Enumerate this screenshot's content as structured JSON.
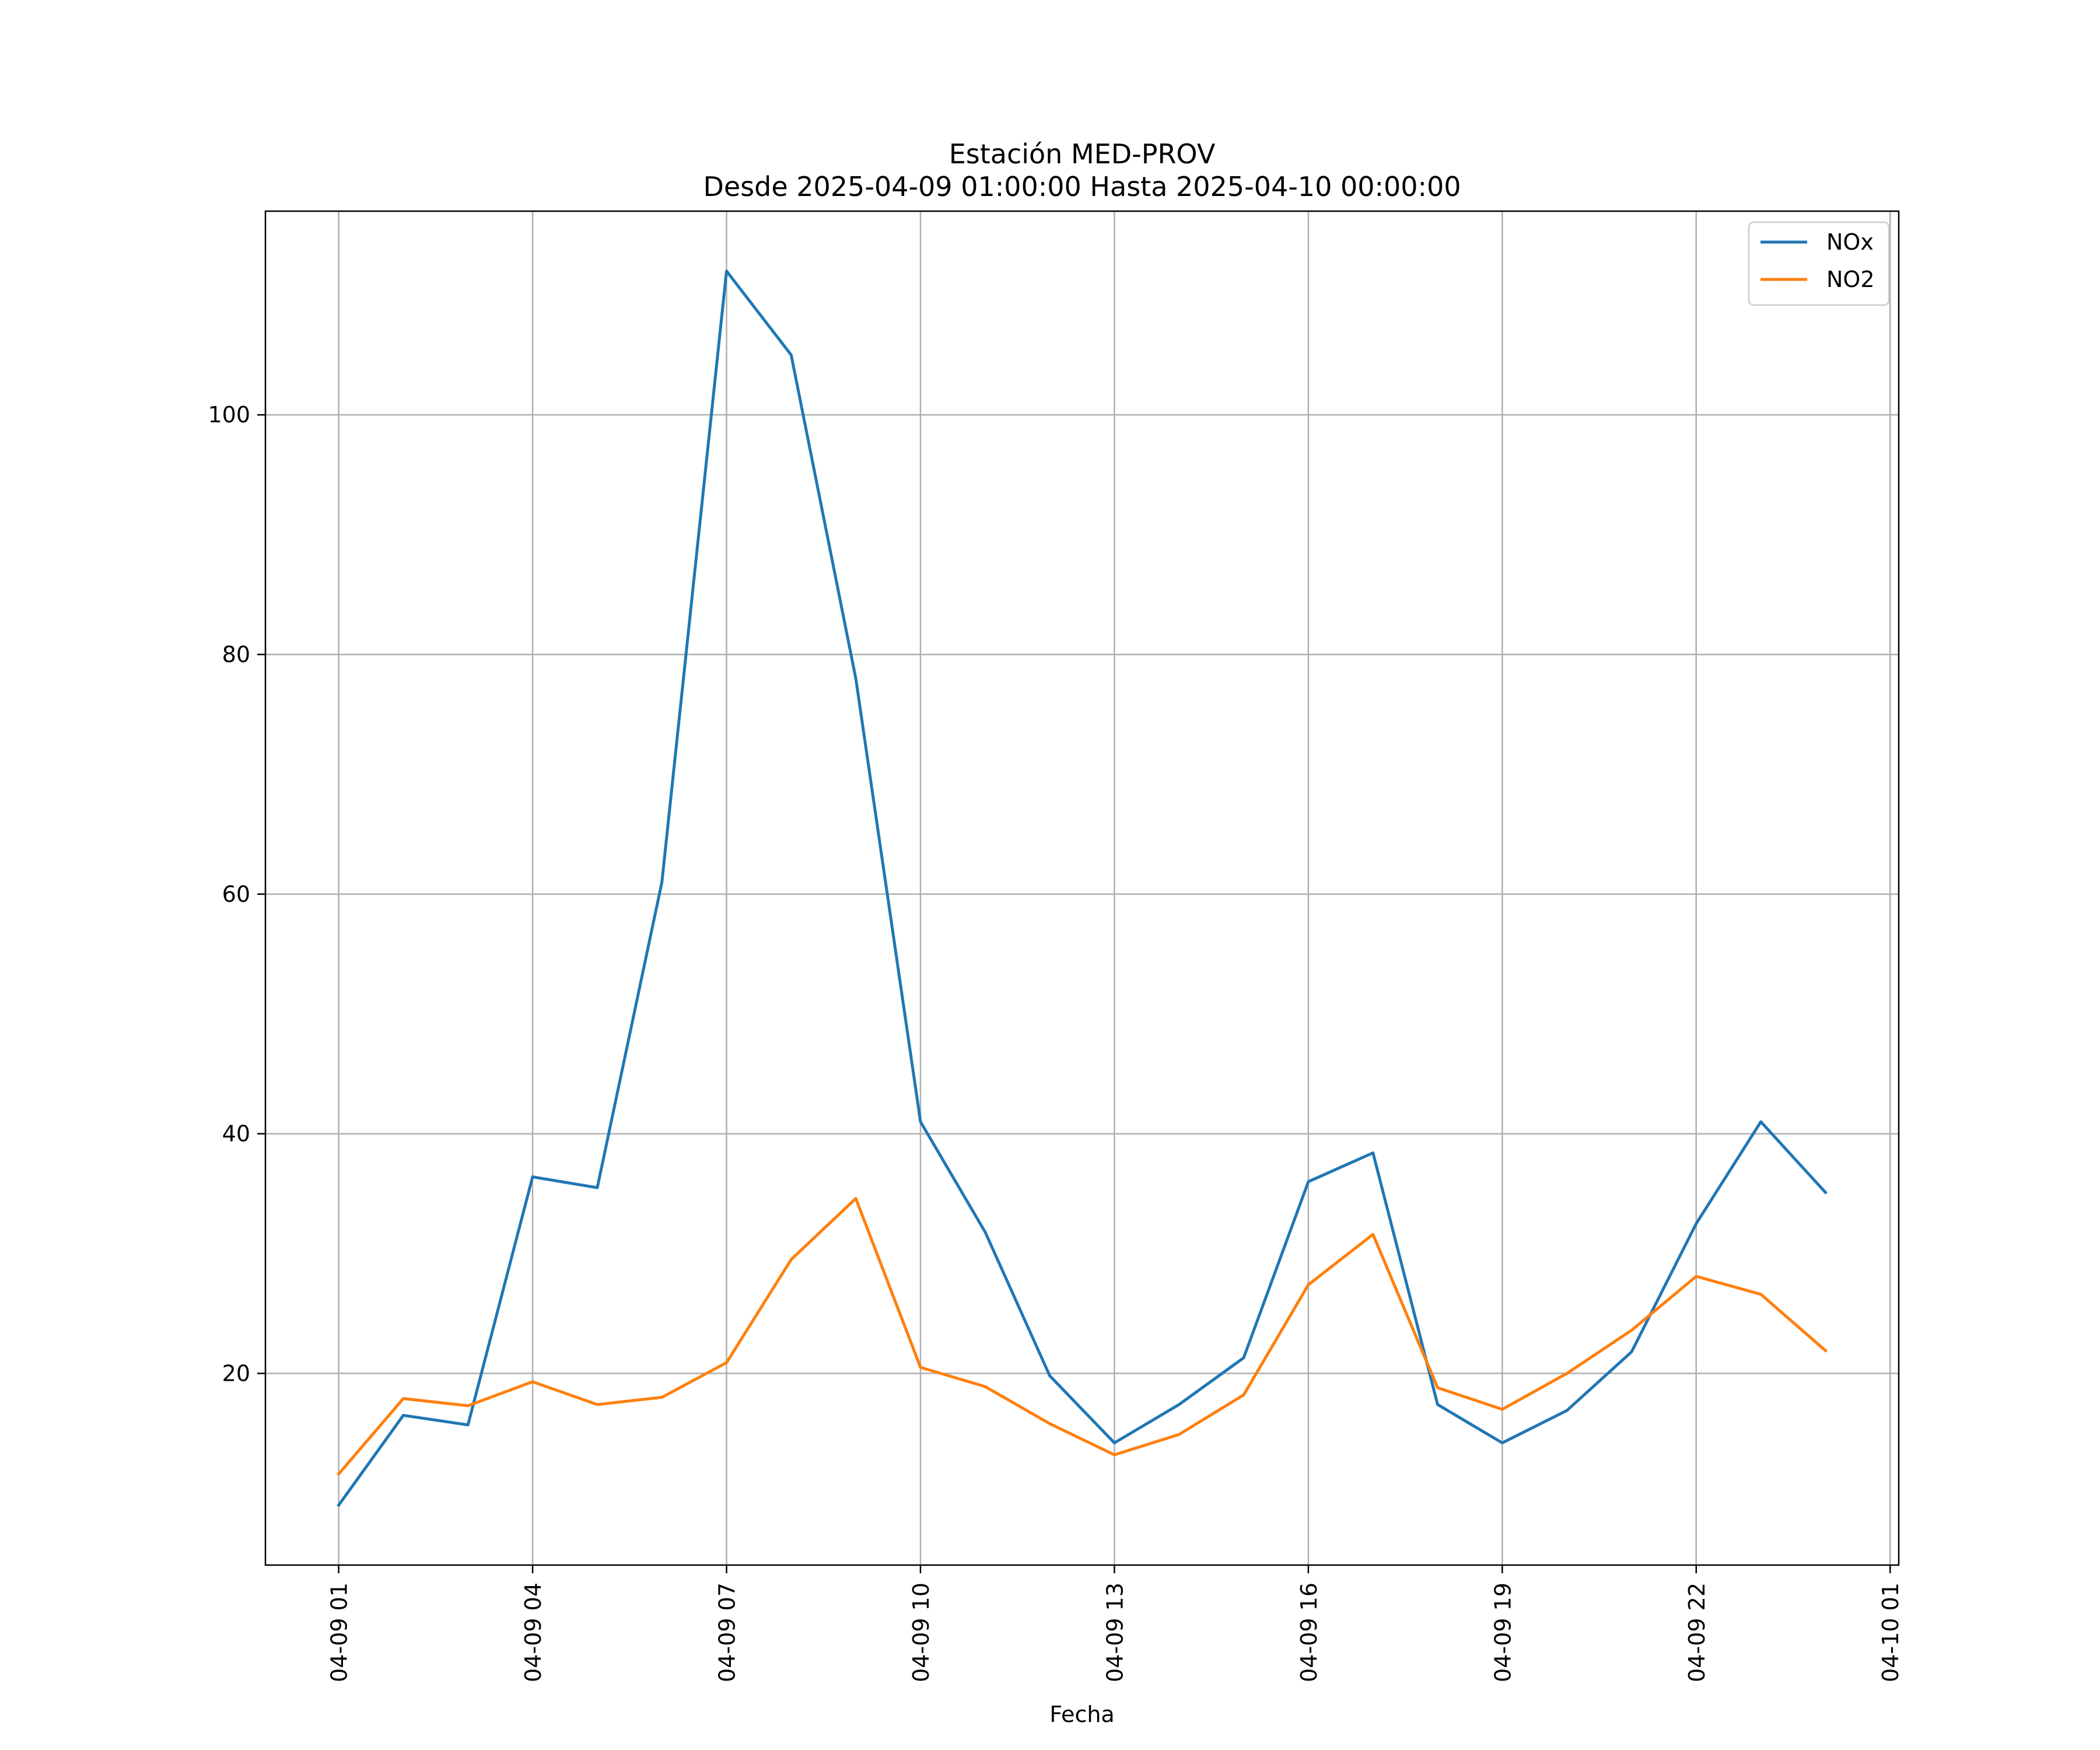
{
  "chart_data": {
    "type": "line",
    "title": "Estación MED-PROV",
    "subtitle": "Desde 2025-04-09 01:00:00 Hasta 2025-04-10 00:00:00",
    "xlabel": "Fecha",
    "ylabel": "",
    "x": [
      "2025-04-09 01:00",
      "2025-04-09 02:00",
      "2025-04-09 03:00",
      "2025-04-09 04:00",
      "2025-04-09 05:00",
      "2025-04-09 06:00",
      "2025-04-09 07:00",
      "2025-04-09 08:00",
      "2025-04-09 09:00",
      "2025-04-09 10:00",
      "2025-04-09 11:00",
      "2025-04-09 12:00",
      "2025-04-09 13:00",
      "2025-04-09 14:00",
      "2025-04-09 15:00",
      "2025-04-09 16:00",
      "2025-04-09 17:00",
      "2025-04-09 18:00",
      "2025-04-09 19:00",
      "2025-04-09 20:00",
      "2025-04-09 21:00",
      "2025-04-09 22:00",
      "2025-04-09 23:00",
      "2025-04-10 00:00"
    ],
    "xlim": [
      "2025-04-08 23:52",
      "2025-04-10 01:08"
    ],
    "x_ticks": [
      "2025-04-09 01:00",
      "2025-04-09 04:00",
      "2025-04-09 07:00",
      "2025-04-09 10:00",
      "2025-04-09 13:00",
      "2025-04-09 16:00",
      "2025-04-09 19:00",
      "2025-04-09 22:00",
      "2025-04-10 01:00"
    ],
    "x_tick_labels": [
      "04-09 01",
      "04-09 04",
      "04-09 07",
      "04-09 10",
      "04-09 13",
      "04-09 16",
      "04-09 19",
      "04-09 22",
      "04-10 01"
    ],
    "ylim": [
      4,
      117
    ],
    "y_ticks": [
      20,
      40,
      60,
      80,
      100
    ],
    "grid": true,
    "legend_position": "top-right",
    "series": [
      {
        "name": "NOx",
        "color": "#1f77b4",
        "values": [
          9.0,
          16.5,
          15.7,
          36.4,
          35.5,
          61.0,
          112.0,
          105.0,
          78.0,
          41.0,
          31.8,
          19.8,
          14.2,
          17.4,
          21.3,
          36.0,
          38.4,
          17.4,
          14.2,
          16.9,
          21.8,
          32.5,
          41.0,
          35.1
        ]
      },
      {
        "name": "NO2",
        "color": "#ff7f0e",
        "values": [
          11.6,
          17.9,
          17.3,
          19.3,
          17.4,
          18.0,
          20.9,
          29.5,
          34.6,
          20.5,
          18.9,
          15.8,
          13.2,
          14.9,
          18.2,
          27.4,
          31.6,
          18.8,
          17.0,
          20.0,
          23.6,
          28.1,
          26.6,
          21.9
        ]
      }
    ]
  }
}
